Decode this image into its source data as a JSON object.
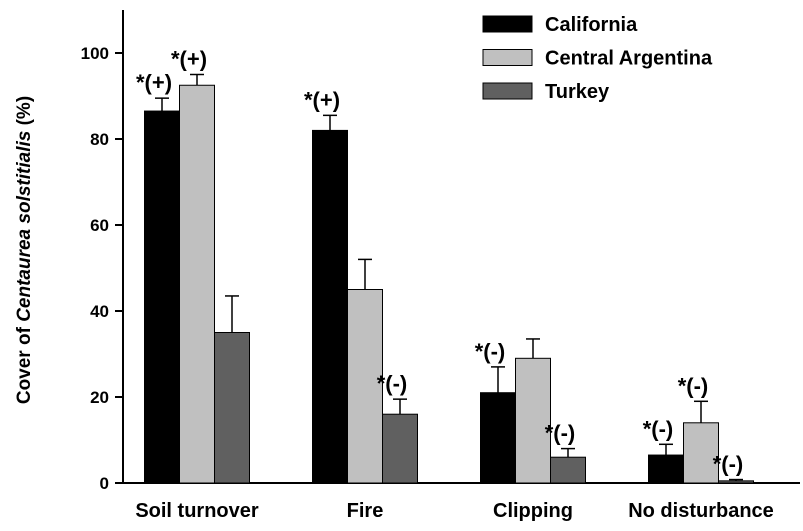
{
  "chart_data": {
    "type": "bar",
    "ylabel": [
      "Cover of ",
      "Centaurea solstitialis",
      " (%)"
    ],
    "categories": [
      "Soil turnover",
      "Fire",
      "Clipping",
      "No disturbance"
    ],
    "ylim": [
      0,
      110
    ],
    "yticks": [
      0,
      20,
      40,
      60,
      80,
      100
    ],
    "legend": "upper right",
    "series": [
      {
        "name": "California",
        "color": "#000000",
        "values": [
          86.5,
          82,
          21,
          6.5
        ],
        "errors": [
          3,
          3.5,
          6,
          2.5
        ],
        "annotations": [
          "*(+)",
          "*(+)",
          "*(-)",
          "*(-)"
        ]
      },
      {
        "name": "Central Argentina",
        "color": "#c0c0c0",
        "values": [
          92.5,
          45,
          29,
          14
        ],
        "errors": [
          2.5,
          7,
          4.5,
          5
        ],
        "annotations": [
          "*(+)",
          null,
          null,
          "*(-)"
        ]
      },
      {
        "name": "Turkey",
        "color": "#606060",
        "values": [
          35,
          16,
          6,
          0.5
        ],
        "errors": [
          8.5,
          3.5,
          2,
          0.3
        ],
        "annotations": [
          null,
          "*(-)",
          "*(-)",
          "*(-)"
        ]
      }
    ]
  }
}
